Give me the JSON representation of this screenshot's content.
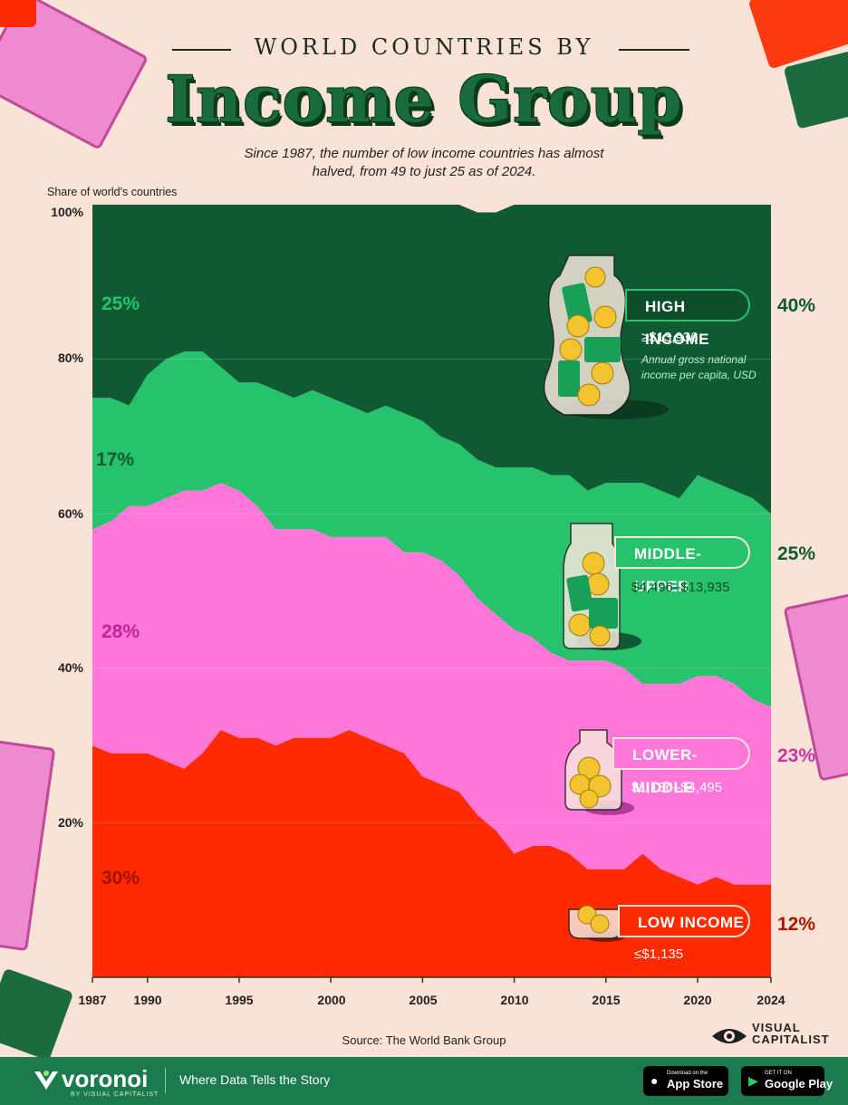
{
  "header": {
    "super_title": "WORLD COUNTRIES BY",
    "title": "Income Group",
    "subtitle": "Since 1987, the number of low income countries has almost halved, from 49 to just 25 as of 2024."
  },
  "colors": {
    "background": "#f9e3d6",
    "high_income": "#0f5a32",
    "middle_upper": "#27c26c",
    "lower_middle": "#ff77d9",
    "low_income": "#ff2a00",
    "title_green": "#1a6b3b"
  },
  "chart_data": {
    "type": "area",
    "stacked": true,
    "yaxis_title": "Share of world's countries",
    "ylim": [
      0,
      100
    ],
    "y_ticks": [
      "100%",
      "80%",
      "60%",
      "40%",
      "20%"
    ],
    "xlim": [
      1987,
      2024
    ],
    "x_ticks": [
      "1987",
      "1990",
      "1995",
      "2000",
      "2005",
      "2010",
      "2015",
      "2020",
      "2024"
    ],
    "x": [
      1987,
      1988,
      1989,
      1990,
      1991,
      1992,
      1993,
      1994,
      1995,
      1996,
      1997,
      1998,
      1999,
      2000,
      2001,
      2002,
      2003,
      2004,
      2005,
      2006,
      2007,
      2008,
      2009,
      2010,
      2011,
      2012,
      2013,
      2014,
      2015,
      2016,
      2017,
      2018,
      2019,
      2020,
      2021,
      2022,
      2023,
      2024
    ],
    "series": [
      {
        "name": "LOW INCOME",
        "color_key": "low_income",
        "start_label": "30%",
        "end_label": "12%",
        "values": [
          30,
          29,
          29,
          29,
          28,
          27,
          29,
          32,
          31,
          31,
          30,
          31,
          31,
          31,
          32,
          31,
          30,
          29,
          26,
          25,
          24,
          21,
          19,
          16,
          17,
          17,
          16,
          14,
          14,
          14,
          16,
          14,
          13,
          12,
          13,
          12,
          12,
          12
        ]
      },
      {
        "name": "LOWER-MIDDLE",
        "color_key": "lower_middle",
        "start_label": "28%",
        "end_label": "23%",
        "values": [
          28,
          30,
          32,
          32,
          34,
          36,
          34,
          32,
          32,
          30,
          28,
          27,
          27,
          26,
          25,
          26,
          27,
          26,
          29,
          29,
          28,
          28,
          28,
          29,
          27,
          25,
          25,
          27,
          27,
          26,
          22,
          24,
          25,
          27,
          26,
          26,
          24,
          23
        ]
      },
      {
        "name": "MIDDLE-UPPER",
        "color_key": "middle_upper",
        "start_label": "17%",
        "end_label": "25%",
        "values": [
          17,
          16,
          13,
          17,
          18,
          18,
          18,
          15,
          14,
          16,
          18,
          17,
          18,
          18,
          17,
          16,
          17,
          18,
          17,
          16,
          17,
          18,
          19,
          21,
          22,
          23,
          24,
          22,
          23,
          24,
          26,
          25,
          24,
          26,
          25,
          25,
          26,
          25
        ]
      },
      {
        "name": "HIGH INCOME",
        "color_key": "high_income",
        "start_label": "25%",
        "end_label": "40%",
        "values": [
          25,
          25,
          26,
          22,
          20,
          19,
          19,
          21,
          23,
          23,
          24,
          25,
          24,
          25,
          26,
          27,
          26,
          27,
          28,
          30,
          31,
          32,
          33,
          34,
          34,
          35,
          35,
          37,
          36,
          36,
          36,
          37,
          38,
          35,
          36,
          37,
          38,
          40
        ]
      }
    ]
  },
  "legend_tags": {
    "high": {
      "label": "HIGH INCOME",
      "range": "≥$13,936",
      "note": "Annual gross national income per capita, USD"
    },
    "middle_upper": {
      "label": "MIDDLE-UPPER",
      "range": "$4,496–$13,935"
    },
    "lower_middle": {
      "label": "LOWER-MIDDLE",
      "range": "$1,136–$4,495"
    },
    "low": {
      "label": "LOW INCOME",
      "range": "≤$1,135"
    }
  },
  "source": "Source: The World Bank Group",
  "brand": {
    "line1": "VISUAL",
    "line2": "CAPITALIST"
  },
  "footer": {
    "logo": "voronoi",
    "by_line": "BY VISUAL CAPITALIST",
    "tagline": "Where Data Tells the Story",
    "app_store": {
      "small": "Download on the",
      "big": "App Store"
    },
    "google_play": {
      "small": "GET IT ON",
      "big": "Google Play"
    }
  }
}
